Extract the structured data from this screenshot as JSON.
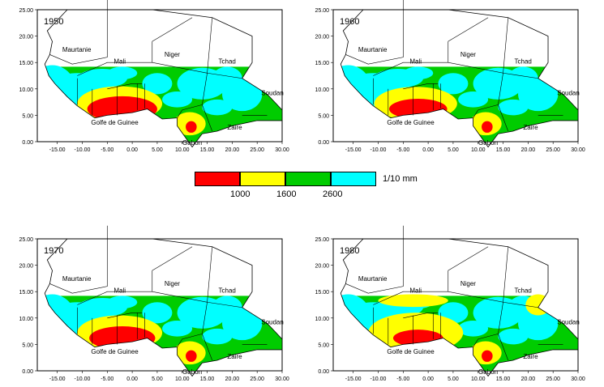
{
  "legend": {
    "unit": "1/10 mm",
    "breaks": [
      "1000",
      "1600",
      "2600"
    ],
    "colors": [
      "#ff0000",
      "#ffff00",
      "#00cc00",
      "#00ffff"
    ]
  },
  "axes": {
    "x_ticks": [
      "-15.00",
      "-10.00",
      "-5.00",
      "0.00",
      "5.00",
      "10.00",
      "15.00",
      "20.00",
      "25.00",
      "30.00"
    ],
    "y_ticks": [
      "0.00",
      "5.00",
      "10.00",
      "15.00",
      "20.00",
      "25.00"
    ]
  },
  "labels": {
    "mauritanie": "Maurtanie",
    "mali": "Mali",
    "niger": "Niger",
    "tchad": "Tchad",
    "soudan": "Soudan",
    "golfe": "Golfe de Guinee",
    "gabon": "Gabon",
    "zaire": "Zaire"
  },
  "panels": [
    {
      "year": "1950",
      "red_level": 1.0,
      "yellow_level": 0.5
    },
    {
      "year": "1960",
      "red_level": 0.7,
      "yellow_level": 0.4
    },
    {
      "year": "1970",
      "red_level": 0.9,
      "yellow_level": 0.5
    },
    {
      "year": "1980",
      "red_level": 0.5,
      "yellow_level": 1.0
    }
  ]
}
